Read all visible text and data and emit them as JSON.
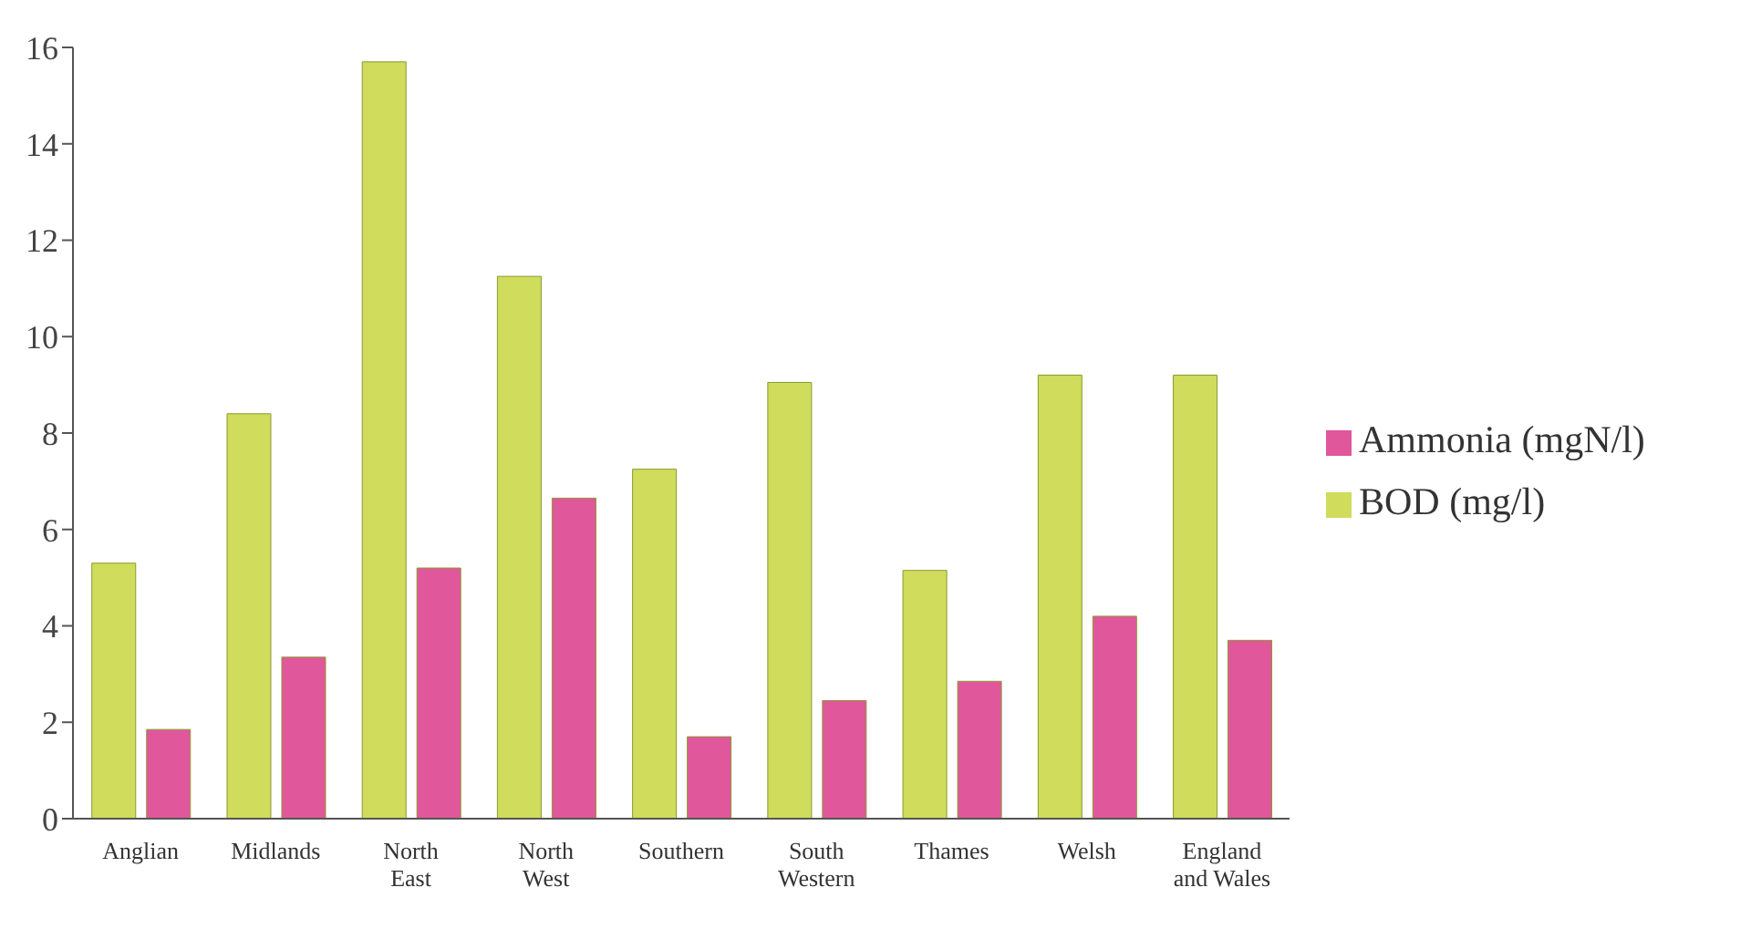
{
  "chart_data": {
    "type": "bar",
    "categories": [
      "Anglian",
      "Midlands",
      "North East",
      "North West",
      "Southern",
      "South Western",
      "Thames",
      "Welsh",
      "England and Wales"
    ],
    "series": [
      {
        "name": "BOD (mg/l)",
        "color": "#cfdc5c",
        "values": [
          5.3,
          8.4,
          15.7,
          11.25,
          7.25,
          9.05,
          5.15,
          9.2,
          9.2
        ]
      },
      {
        "name": "Ammonia (mgN/l)",
        "color": "#e0579b",
        "values": [
          1.85,
          3.35,
          5.2,
          6.65,
          1.7,
          2.45,
          2.85,
          4.2,
          3.7
        ]
      }
    ],
    "ylim": [
      0,
      16
    ],
    "yticks": [
      0,
      2,
      4,
      6,
      8,
      10,
      12,
      14,
      16
    ],
    "grid": false,
    "legend": "right"
  }
}
